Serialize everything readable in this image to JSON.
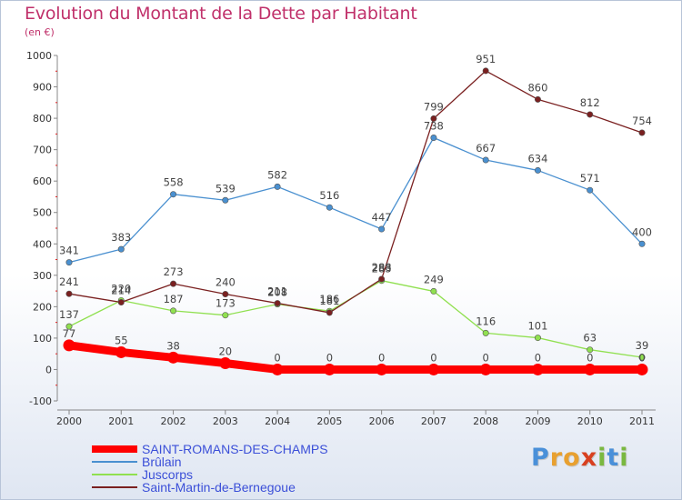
{
  "title": "Evolution du Montant de la Dette par Habitant",
  "subtitle": "(en €)",
  "logo": {
    "text": "Proxiti",
    "letters": [
      {
        "ch": "P",
        "color": "#4a90d9"
      },
      {
        "ch": "r",
        "color": "#e8a030"
      },
      {
        "ch": "o",
        "color": "#e8a030"
      },
      {
        "ch": "x",
        "color": "#d84020"
      },
      {
        "ch": "i",
        "color": "#7ab840"
      },
      {
        "ch": "t",
        "color": "#4a90d9"
      },
      {
        "ch": "i",
        "color": "#7ab840"
      }
    ]
  },
  "chart_data": {
    "type": "line",
    "title": "Evolution du Montant de la Dette par Habitant",
    "subtitle": "(en €)",
    "x": [
      "2000",
      "2001",
      "2002",
      "2003",
      "2004",
      "2005",
      "2006",
      "2007",
      "2008",
      "2009",
      "2010",
      "2011"
    ],
    "ylim": [
      -100,
      1000
    ],
    "yticks": [
      "-100",
      "0",
      "100",
      "200",
      "300",
      "400",
      "500",
      "600",
      "700",
      "800",
      "900",
      "1000"
    ],
    "grid": false,
    "legend_position": "bottom-left",
    "series": [
      {
        "name": "SAINT-ROMANS-DES-CHAMPS",
        "color": "#ff0000",
        "values": [
          77,
          55,
          38,
          20,
          0,
          0,
          0,
          0,
          0,
          0,
          0,
          0
        ],
        "labels": [
          "77",
          "55",
          "38",
          "20",
          "0",
          "0",
          "0",
          "0",
          "0",
          "0",
          "0",
          "0"
        ]
      },
      {
        "name": "Brûlain",
        "color": "#4a90d0",
        "values": [
          341,
          383,
          558,
          539,
          582,
          516,
          447,
          738,
          667,
          634,
          571,
          400
        ],
        "labels": [
          "341",
          "383",
          "558",
          "539",
          "582",
          "516",
          "447",
          "738",
          "667",
          "634",
          "571",
          "400"
        ]
      },
      {
        "name": "Juscorps",
        "color": "#90e050",
        "values": [
          137,
          220,
          187,
          173,
          208,
          186,
          283,
          249,
          116,
          101,
          63,
          39
        ],
        "labels": [
          "137",
          "220",
          "187",
          "173",
          "208",
          "186",
          "283",
          "249",
          "116",
          "101",
          "63",
          "39"
        ]
      },
      {
        "name": "Saint-Martin-de-Bernegoue",
        "color": "#7a2020",
        "values": [
          241,
          214,
          273,
          240,
          211,
          181,
          288,
          799,
          951,
          860,
          812,
          754
        ],
        "labels": [
          "241",
          "214",
          "273",
          "240",
          "211",
          "181",
          "288",
          "799",
          "951",
          "860",
          "812",
          "754"
        ]
      }
    ]
  }
}
